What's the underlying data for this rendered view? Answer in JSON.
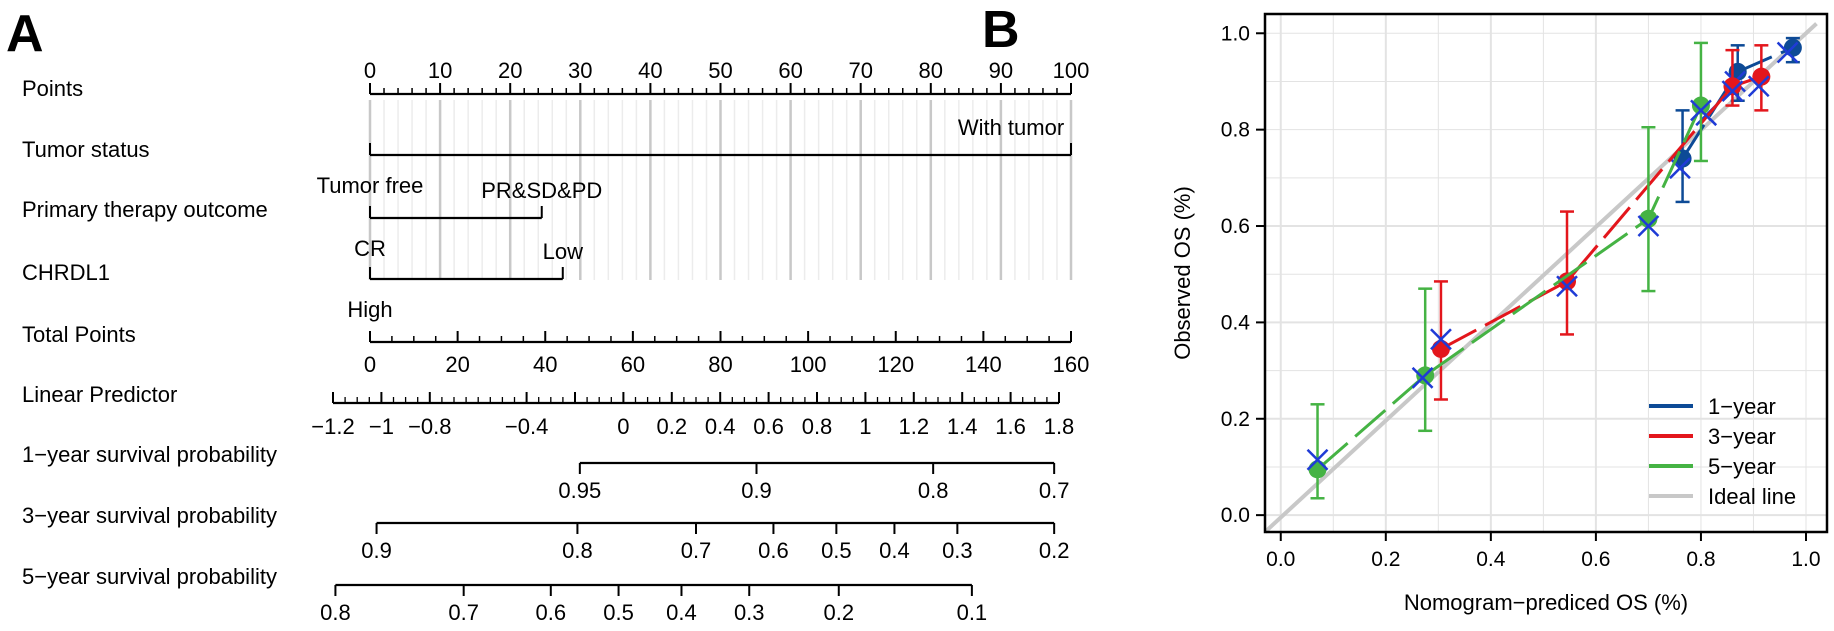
{
  "panel_a_letter": "A",
  "panel_b_letter": "B",
  "chart_data": [
    {
      "type": "nomogram",
      "rows": [
        {
          "label": "Points",
          "scale": {
            "min": 0,
            "max": 100,
            "ticks": [
              0,
              10,
              20,
              30,
              40,
              50,
              60,
              70,
              80,
              90,
              100
            ],
            "minor_step": 2
          }
        },
        {
          "label": "Tumor status",
          "categories": [
            {
              "name": "Tumor free",
              "points": 0
            },
            {
              "name": "With tumor",
              "points": 100
            }
          ]
        },
        {
          "label": "Primary therapy outcome",
          "categories": [
            {
              "name": "CR",
              "points": 0
            },
            {
              "name": "PR&SD&PD",
              "points": 24.5
            }
          ]
        },
        {
          "label": "CHRDL1",
          "categories": [
            {
              "name": "High",
              "points": 0
            },
            {
              "name": "Low",
              "points": 27.5
            }
          ]
        },
        {
          "label": "Total Points",
          "scale": {
            "min": 0,
            "max": 160,
            "ticks": [
              0,
              20,
              40,
              60,
              80,
              100,
              120,
              140,
              160
            ],
            "minor_step": 5
          }
        },
        {
          "label": "Linear Predictor",
          "ticks": [
            {
              "value": -1.2,
              "label": "−1.2",
              "at": -1.2
            },
            {
              "value": -1,
              "label": "−1",
              "at": -1.0
            },
            {
              "value": -0.8,
              "label": "−0.8",
              "at": -0.8
            },
            {
              "value": -0.4,
              "label": "−0.4",
              "at": -0.4
            },
            {
              "value": -0.2,
              "label": "",
              "at": -0.2
            },
            {
              "value": 0,
              "label": "0",
              "at": 0
            },
            {
              "value": 0.2,
              "label": "0.2",
              "at": 0.2
            },
            {
              "value": 0.4,
              "label": "0.4",
              "at": 0.4
            },
            {
              "value": 0.6,
              "label": "0.6",
              "at": 0.6
            },
            {
              "value": 0.8,
              "label": "0.8",
              "at": 0.8
            },
            {
              "value": 1,
              "label": "1",
              "at": 1.0
            },
            {
              "value": 1.2,
              "label": "1.2",
              "at": 1.2
            },
            {
              "value": 1.4,
              "label": "1.4",
              "at": 1.4
            },
            {
              "value": 1.6,
              "label": "1.6",
              "at": 1.6
            },
            {
              "value": 1.8,
              "label": "1.8",
              "at": 1.8
            }
          ]
        },
        {
          "label": "1−year survival probability",
          "ticks": [
            {
              "value": 0.95,
              "label": "0.95",
              "at": -0.18
            },
            {
              "value": 0.9,
              "label": "0.9",
              "at": 0.55
            },
            {
              "value": 0.8,
              "label": "0.8",
              "at": 1.28
            },
            {
              "value": 0.7,
              "label": "0.7",
              "at": 1.78
            }
          ]
        },
        {
          "label": "3−year survival probability",
          "ticks": [
            {
              "value": 0.9,
              "label": "0.9",
              "at": -1.02
            },
            {
              "value": 0.8,
              "label": "0.8",
              "at": -0.19
            },
            {
              "value": 0.7,
              "label": "0.7",
              "at": 0.3
            },
            {
              "value": 0.6,
              "label": "0.6",
              "at": 0.62
            },
            {
              "value": 0.5,
              "label": "0.5",
              "at": 0.88
            },
            {
              "value": 0.4,
              "label": "0.4",
              "at": 1.12
            },
            {
              "value": 0.3,
              "label": "0.3",
              "at": 1.38
            },
            {
              "value": 0.2,
              "label": "0.2",
              "at": 1.78
            }
          ]
        },
        {
          "label": "5−year survival probability",
          "ticks": [
            {
              "value": 0.8,
              "label": "0.8",
              "at": -1.19
            },
            {
              "value": 0.7,
              "label": "0.7",
              "at": -0.66
            },
            {
              "value": 0.6,
              "label": "0.6",
              "at": -0.3
            },
            {
              "value": 0.5,
              "label": "0.5",
              "at": -0.02
            },
            {
              "value": 0.4,
              "label": "0.4",
              "at": 0.24
            },
            {
              "value": 0.3,
              "label": "0.3",
              "at": 0.52
            },
            {
              "value": 0.2,
              "label": "0.2",
              "at": 0.89
            },
            {
              "value": 0.1,
              "label": "0.1",
              "at": 1.44
            }
          ]
        }
      ],
      "linear_predictor_range": [
        -1.2,
        1.8
      ]
    },
    {
      "type": "scatter",
      "xlabel": "Nomogram−prediced OS (%)",
      "ylabel": "Observed OS (%)",
      "xlim": [
        -0.03,
        1.04
      ],
      "ylim": [
        -0.035,
        1.04
      ],
      "xticks": [
        0.0,
        0.2,
        0.4,
        0.6,
        0.8,
        1.0
      ],
      "yticks": [
        0.0,
        0.2,
        0.4,
        0.6,
        0.8,
        1.0
      ],
      "tick_labels": [
        "0.0",
        "0.2",
        "0.4",
        "0.6",
        "0.8",
        "1.0"
      ],
      "grid": true,
      "legend_position": "bottom-right",
      "ideal_line": {
        "name": "Ideal line",
        "color": "#c8c8c8"
      },
      "series": [
        {
          "name": "1−year",
          "color": "#0d4a96",
          "points": [
            {
              "x": 0.765,
              "y": 0.74,
              "lo": 0.65,
              "hi": 0.84
            },
            {
              "x": 0.87,
              "y": 0.92,
              "lo": 0.86,
              "hi": 0.975
            },
            {
              "x": 0.975,
              "y": 0.97,
              "lo": 0.94,
              "hi": 0.99
            }
          ],
          "corrected": [
            {
              "x": 0.76,
              "y": 0.72
            },
            {
              "x": 0.81,
              "y": 0.83
            },
            {
              "x": 0.865,
              "y": 0.9
            },
            {
              "x": 0.965,
              "y": 0.96
            }
          ]
        },
        {
          "name": "3−year",
          "color": "#e3161c",
          "points": [
            {
              "x": 0.305,
              "y": 0.345,
              "lo": 0.24,
              "hi": 0.485
            },
            {
              "x": 0.545,
              "y": 0.485,
              "lo": 0.375,
              "hi": 0.63
            },
            {
              "x": 0.86,
              "y": 0.89,
              "lo": 0.85,
              "hi": 0.965
            },
            {
              "x": 0.915,
              "y": 0.91,
              "lo": 0.84,
              "hi": 0.975
            }
          ],
          "corrected": [
            {
              "x": 0.305,
              "y": 0.365
            },
            {
              "x": 0.545,
              "y": 0.475
            },
            {
              "x": 0.86,
              "y": 0.88
            },
            {
              "x": 0.91,
              "y": 0.89
            }
          ]
        },
        {
          "name": "5−year",
          "color": "#45b344",
          "points": [
            {
              "x": 0.07,
              "y": 0.095,
              "lo": 0.035,
              "hi": 0.23
            },
            {
              "x": 0.275,
              "y": 0.29,
              "lo": 0.175,
              "hi": 0.47
            },
            {
              "x": 0.7,
              "y": 0.615,
              "lo": 0.465,
              "hi": 0.805
            },
            {
              "x": 0.8,
              "y": 0.85,
              "lo": 0.735,
              "hi": 0.98
            }
          ],
          "corrected": [
            {
              "x": 0.07,
              "y": 0.115
            },
            {
              "x": 0.27,
              "y": 0.285
            },
            {
              "x": 0.7,
              "y": 0.6
            },
            {
              "x": 0.8,
              "y": 0.84
            }
          ]
        }
      ]
    }
  ]
}
